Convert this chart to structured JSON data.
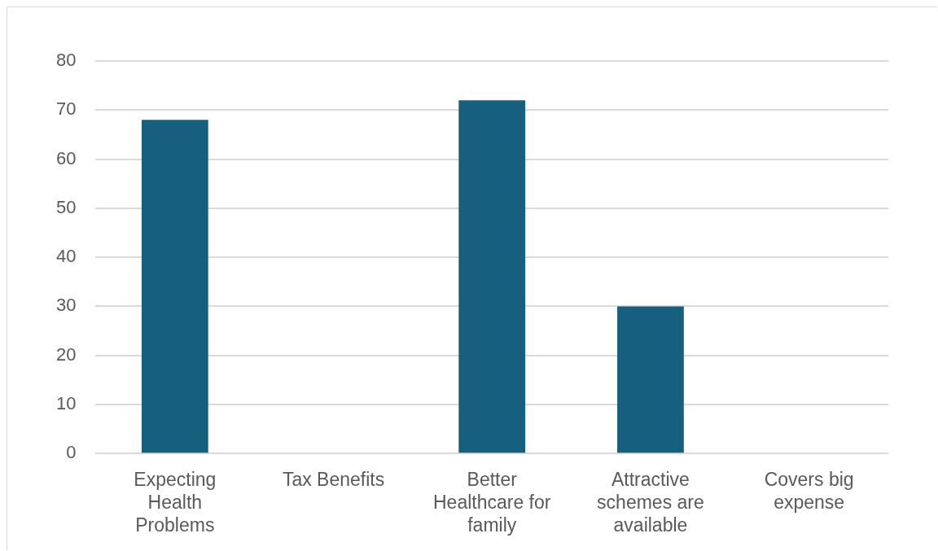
{
  "chart_data": {
    "type": "bar",
    "categories": [
      "Expecting Health Problems",
      "Tax Benefits",
      "Better Healthcare for family",
      "Attractive schemes are available",
      "Covers big expense"
    ],
    "values": [
      68,
      0,
      72,
      30,
      0
    ],
    "color": "#175f7e",
    "ylim": [
      0,
      80
    ],
    "yticks": [
      0,
      10,
      20,
      30,
      40,
      50,
      60,
      70,
      80
    ],
    "grid": "y",
    "legend": false
  }
}
